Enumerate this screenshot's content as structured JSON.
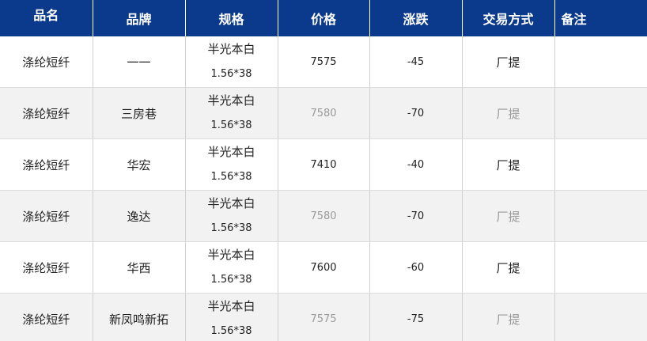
{
  "table": {
    "headers": [
      "品名",
      "品牌",
      "规格",
      "价格",
      "涨跌",
      "交易方式",
      "备注"
    ],
    "rows": [
      {
        "name": "涤纶短纤",
        "brand": "一一",
        "spec": [
          "半光本白",
          "1.56*38"
        ],
        "price": 7575,
        "change": -45,
        "delivery": "厂提"
      },
      {
        "name": "涤纶短纤",
        "brand": "三房巷",
        "spec": [
          "半光本白",
          "1.56*38"
        ],
        "price": 7580,
        "change": -70,
        "delivery": "厂提"
      },
      {
        "name": "涤纶短纤",
        "brand": "华宏",
        "spec": [
          "半光本白",
          "1.56*38"
        ],
        "price": 7410,
        "change": -40,
        "delivery": "厂提"
      },
      {
        "name": "涤纶短纤",
        "brand": "逸达",
        "spec": [
          "半光本白",
          "1.56*38"
        ],
        "price": 7580,
        "change": -70,
        "delivery": "厂提"
      },
      {
        "name": "涤纶短纤",
        "brand": "华西",
        "spec": [
          "半光本白",
          "1.56*38"
        ],
        "price": 7600,
        "change": -60,
        "delivery": "厂提"
      },
      {
        "name": "涤纶短纤",
        "brand": "新凤鸣新拓",
        "spec": [
          "半光本白",
          "1.56*38"
        ],
        "price": 7575,
        "change": -75,
        "delivery": "厂提"
      }
    ]
  }
}
